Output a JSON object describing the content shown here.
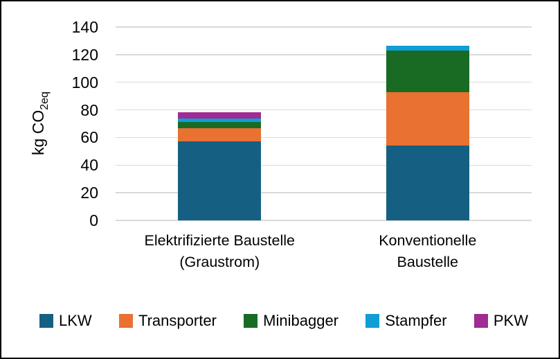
{
  "chart_data": {
    "type": "bar",
    "stacked": true,
    "title": "",
    "ylabel": "kg CO2eq",
    "ylabel_main": "kg CO",
    "ylabel_sub": "2eq",
    "ylim": [
      0,
      140
    ],
    "yticks": [
      0,
      20,
      40,
      60,
      80,
      100,
      120,
      140
    ],
    "grid": true,
    "legend_position": "bottom",
    "categories": [
      {
        "label": "Elektrifizierte Baustelle (Graustrom)",
        "lines": [
          "Elektrifizierte Baustelle",
          "(Graustrom)"
        ]
      },
      {
        "label": "Konventionelle Baustelle",
        "lines": [
          "Konventionelle",
          "Baustelle"
        ]
      }
    ],
    "series": [
      {
        "name": "LKW",
        "color": "#156082",
        "values": [
          57,
          54
        ]
      },
      {
        "name": "Transporter",
        "color": "#E97132",
        "values": [
          10,
          39
        ]
      },
      {
        "name": "Minibagger",
        "color": "#196B24",
        "values": [
          4.5,
          30
        ]
      },
      {
        "name": "Stampfer",
        "color": "#0F9ED5",
        "values": [
          2.5,
          3.5
        ]
      },
      {
        "name": "PKW",
        "color": "#A02B93",
        "values": [
          4.5,
          0
        ]
      }
    ]
  },
  "colors": {
    "background": "#ffffff",
    "frame_border": "#000000",
    "grid": "#d9d9d9",
    "text": "#000000"
  }
}
